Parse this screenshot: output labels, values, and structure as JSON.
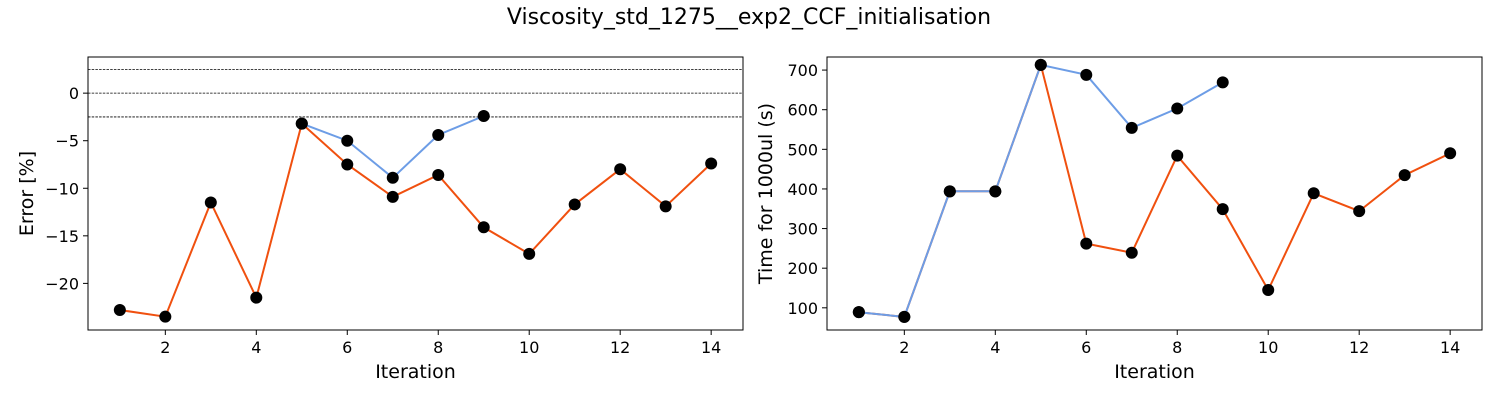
{
  "figure": {
    "suptitle": "Viscosity_std_1275__exp2_CCF_initialisation"
  },
  "colors": {
    "series_orange": "#f0500f",
    "series_blue": "#6d9de6",
    "marker": "#000000",
    "reference_line": "#000000"
  },
  "chart_data": [
    {
      "type": "line",
      "xlabel": "Iteration",
      "ylabel": "Error [%]",
      "xlim": [
        0.3,
        14.7
      ],
      "ylim": [
        -24.9,
        3.8
      ],
      "xticks": [
        2,
        4,
        6,
        8,
        10,
        12,
        14
      ],
      "yticks": [
        -20,
        -15,
        -10,
        -5,
        0
      ],
      "ytick_labels": [
        "−20",
        "−15",
        "−10",
        "−5",
        "0"
      ],
      "reference_lines": [
        2.5,
        0,
        -2.5
      ],
      "grid": false,
      "legend": "none",
      "series": [
        {
          "color": "#f0500f",
          "x": [
            1,
            2,
            3,
            4,
            5,
            6,
            7,
            8,
            9,
            10,
            11,
            12,
            13,
            14
          ],
          "y": [
            -22.8,
            -23.5,
            -11.5,
            -21.5,
            -3.2,
            -7.5,
            -10.9,
            -8.6,
            -14.1,
            -16.9,
            -11.7,
            -8.0,
            -11.9,
            -7.4
          ]
        },
        {
          "color": "#6d9de6",
          "x": [
            5,
            6,
            7,
            8,
            9
          ],
          "y": [
            -3.2,
            -5.0,
            -8.9,
            -4.4,
            -2.4
          ]
        }
      ]
    },
    {
      "type": "line",
      "xlabel": "Iteration",
      "ylabel": "Time for 1000ul (s)",
      "xlim": [
        0.3,
        14.7
      ],
      "ylim": [
        44,
        733
      ],
      "xticks": [
        2,
        4,
        6,
        8,
        10,
        12,
        14
      ],
      "yticks": [
        100,
        200,
        300,
        400,
        500,
        600,
        700
      ],
      "ytick_labels": [
        "100",
        "200",
        "300",
        "400",
        "500",
        "600",
        "700"
      ],
      "reference_lines": [],
      "grid": false,
      "legend": "none",
      "series": [
        {
          "color": "#f0500f",
          "x": [
            1,
            2,
            3,
            4,
            5,
            6,
            7,
            8,
            9,
            10,
            11,
            12,
            13,
            14
          ],
          "y": [
            89,
            77,
            394,
            394,
            713,
            262,
            239,
            484,
            349,
            145,
            389,
            344,
            435,
            490
          ]
        },
        {
          "color": "#6d9de6",
          "x": [
            1,
            2,
            3,
            4,
            5,
            6,
            7,
            8,
            9
          ],
          "y": [
            89,
            77,
            394,
            394,
            713,
            688,
            554,
            603,
            669
          ]
        }
      ]
    }
  ]
}
